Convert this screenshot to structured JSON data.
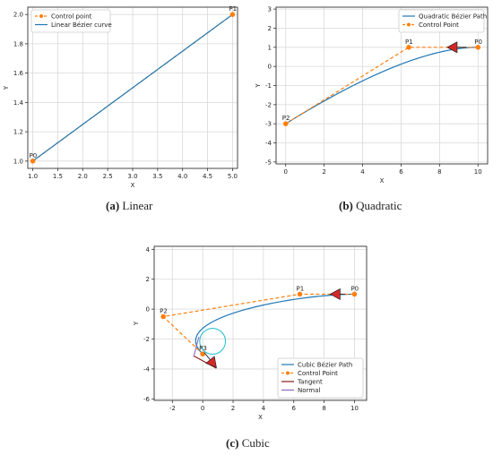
{
  "captions": {
    "a": {
      "label": "(a)",
      "text": "Linear"
    },
    "b": {
      "label": "(b)",
      "text": "Quadratic"
    },
    "c": {
      "label": "(c)",
      "text": "Cubic"
    }
  },
  "colors": {
    "control": "#ff7f0e",
    "curve": "#1f77b4",
    "tangent": "#8b1a1a",
    "normal": "#9467bd",
    "arrow": "#d62728",
    "circle": "#17becf"
  },
  "chart_data": [
    {
      "id": "a",
      "type": "line",
      "xlabel": "X",
      "ylabel": "Y",
      "xlim": [
        0.9,
        5.1
      ],
      "ylim": [
        0.95,
        2.05
      ],
      "xticks": [
        1.0,
        1.5,
        2.0,
        2.5,
        3.0,
        3.5,
        4.0,
        4.5,
        5.0
      ],
      "yticks": [
        1.0,
        1.2,
        1.4,
        1.6,
        1.8,
        2.0
      ],
      "xtick_labels": [
        "1.0",
        "1.5",
        "2.0",
        "2.5",
        "3.0",
        "3.5",
        "4.0",
        "4.5",
        "5.0"
      ],
      "ytick_labels": [
        "1.0",
        "1.2",
        "1.4",
        "1.6",
        "1.8",
        "2.0"
      ],
      "grid": true,
      "legend_placement": "top-left",
      "control_points": [
        {
          "name": "P0",
          "x": 1.0,
          "y": 1.0
        },
        {
          "name": "P1",
          "x": 5.0,
          "y": 2.0
        }
      ],
      "series": [
        {
          "name": "Control point",
          "role": "control"
        },
        {
          "name": "Linear Bézier curve",
          "role": "curve"
        }
      ]
    },
    {
      "id": "b",
      "type": "line",
      "xlabel": "X",
      "ylabel": "Y",
      "xlim": [
        -0.5,
        10.5
      ],
      "ylim": [
        -5.1,
        3.1
      ],
      "xticks": [
        0,
        2,
        4,
        6,
        8,
        10
      ],
      "yticks": [
        -5,
        -4,
        -3,
        -2,
        -1,
        0,
        1,
        2,
        3
      ],
      "xtick_labels": [
        "0",
        "2",
        "4",
        "6",
        "8",
        "10"
      ],
      "ytick_labels": [
        "-5",
        "-4",
        "-3",
        "-2",
        "-1",
        "0",
        "1",
        "2",
        "3"
      ],
      "grid": true,
      "legend_placement": "top-right",
      "control_points": [
        {
          "name": "P0",
          "x": 10,
          "y": 1
        },
        {
          "name": "P1",
          "x": 6.4,
          "y": 1
        },
        {
          "name": "P2",
          "x": 0,
          "y": -3
        }
      ],
      "arrow": {
        "from": [
          9.4,
          1.0
        ],
        "to": [
          8.4,
          1.0
        ]
      },
      "series": [
        {
          "name": "Quadratic Bézier Path",
          "role": "curve"
        },
        {
          "name": "Control Point",
          "role": "control"
        }
      ]
    },
    {
      "id": "c",
      "type": "line",
      "xlabel": "X",
      "ylabel": "Y",
      "xlim": [
        -3.2,
        10.8
      ],
      "ylim": [
        -6.1,
        4.2
      ],
      "xticks": [
        -2,
        0,
        2,
        4,
        6,
        8,
        10
      ],
      "yticks": [
        -6,
        -4,
        -2,
        0,
        2,
        4
      ],
      "xtick_labels": [
        "-2",
        "0",
        "2",
        "4",
        "6",
        "8",
        "10"
      ],
      "ytick_labels": [
        "-6",
        "-4",
        "-2",
        "0",
        "2",
        "4"
      ],
      "grid": true,
      "legend_placement": "bottom-right",
      "control_points": [
        {
          "name": "P0",
          "x": 10,
          "y": 1
        },
        {
          "name": "P1",
          "x": 6.4,
          "y": 1
        },
        {
          "name": "P2",
          "x": -2.6,
          "y": -0.5
        },
        {
          "name": "P3",
          "x": 0,
          "y": -3
        }
      ],
      "arrows": [
        {
          "from": [
            9.4,
            1.0
          ],
          "to": [
            8.4,
            1.0
          ]
        },
        {
          "from": [
            0.1,
            -2.9
          ],
          "to": [
            0.9,
            -3.9
          ]
        }
      ],
      "tangent": {
        "from": [
          -0.55,
          -3.15
        ],
        "to": [
          0.9,
          -3.95
        ]
      },
      "normal": {
        "from": [
          -0.6,
          -3.2
        ],
        "to": [
          -0.25,
          -1.85
        ]
      },
      "circle": {
        "cx": 0.65,
        "cy": -2.15,
        "r": 0.85
      },
      "series": [
        {
          "name": "Cubic Bézier Path",
          "role": "curve"
        },
        {
          "name": "Control Point",
          "role": "control"
        },
        {
          "name": "Tangent",
          "role": "tangent"
        },
        {
          "name": "Normal",
          "role": "normal"
        }
      ]
    }
  ]
}
